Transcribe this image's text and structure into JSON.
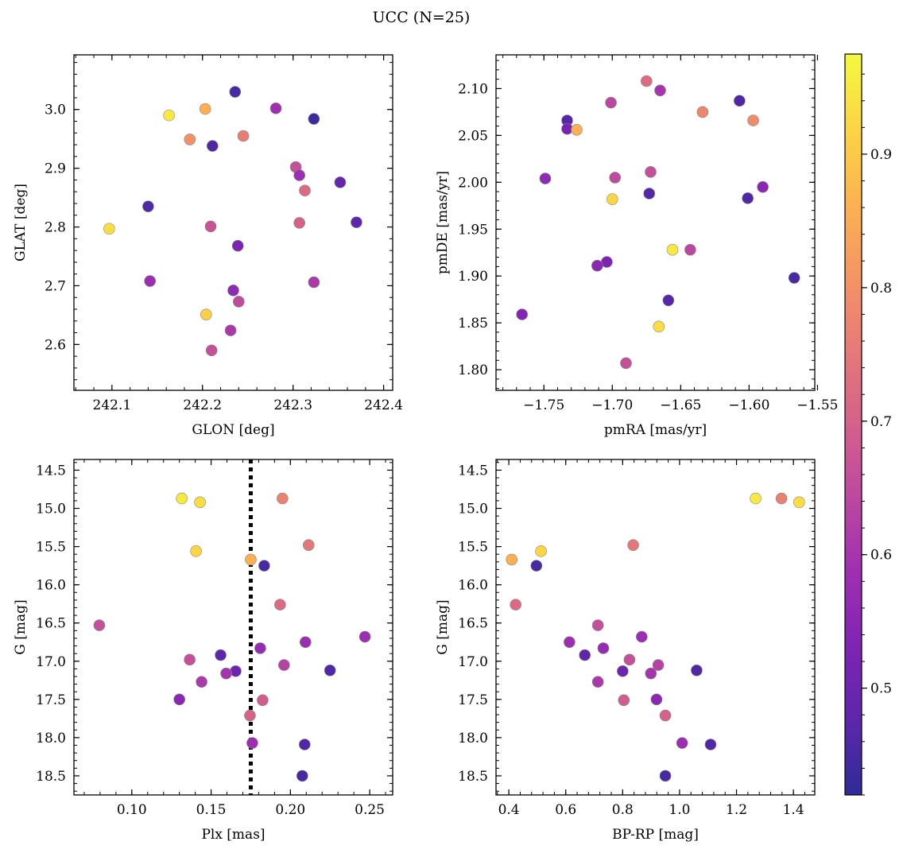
{
  "figure": {
    "title": "UCC (N=25)"
  },
  "colorbar": {
    "cmap": "plasma",
    "range": [
      0.42,
      0.975
    ],
    "ticks": [
      0.5,
      0.6,
      0.7,
      0.8,
      0.9
    ],
    "tick_labels": [
      "0.5",
      "0.6",
      "0.7",
      "0.8",
      "0.9"
    ]
  },
  "chart_data": [
    {
      "type": "scatter",
      "xlabel": "GLON [deg]",
      "ylabel": "GLAT [deg]",
      "xlim": [
        242.058,
        242.41
      ],
      "ylim": [
        2.522,
        3.093
      ],
      "xticks": [
        242.1,
        242.2,
        242.3,
        242.4
      ],
      "xtick_labels": [
        "242.1",
        "242.2",
        "242.3",
        "242.4"
      ],
      "yticks": [
        2.6,
        2.7,
        2.8,
        2.9,
        3.0
      ],
      "ytick_labels": [
        "2.6",
        "2.7",
        "2.8",
        "2.9",
        "3.0"
      ],
      "y_inverted": false,
      "points": [
        {
          "x": 242.236,
          "y": 3.03,
          "c": 0.45
        },
        {
          "x": 242.281,
          "y": 3.002,
          "c": 0.59
        },
        {
          "x": 242.203,
          "y": 3.001,
          "c": 0.86
        },
        {
          "x": 242.163,
          "y": 2.99,
          "c": 0.95
        },
        {
          "x": 242.323,
          "y": 2.984,
          "c": 0.44
        },
        {
          "x": 242.245,
          "y": 2.955,
          "c": 0.76
        },
        {
          "x": 242.186,
          "y": 2.949,
          "c": 0.8
        },
        {
          "x": 242.211,
          "y": 2.938,
          "c": 0.46
        },
        {
          "x": 242.303,
          "y": 2.902,
          "c": 0.66
        },
        {
          "x": 242.307,
          "y": 2.888,
          "c": 0.58
        },
        {
          "x": 242.352,
          "y": 2.876,
          "c": 0.49
        },
        {
          "x": 242.313,
          "y": 2.862,
          "c": 0.72
        },
        {
          "x": 242.14,
          "y": 2.835,
          "c": 0.46
        },
        {
          "x": 242.37,
          "y": 2.808,
          "c": 0.48
        },
        {
          "x": 242.307,
          "y": 2.807,
          "c": 0.7
        },
        {
          "x": 242.209,
          "y": 2.801,
          "c": 0.67
        },
        {
          "x": 242.097,
          "y": 2.797,
          "c": 0.93
        },
        {
          "x": 242.239,
          "y": 2.768,
          "c": 0.53
        },
        {
          "x": 242.142,
          "y": 2.708,
          "c": 0.58
        },
        {
          "x": 242.323,
          "y": 2.706,
          "c": 0.61
        },
        {
          "x": 242.234,
          "y": 2.692,
          "c": 0.56
        },
        {
          "x": 242.24,
          "y": 2.673,
          "c": 0.65
        },
        {
          "x": 242.204,
          "y": 2.651,
          "c": 0.91
        },
        {
          "x": 242.231,
          "y": 2.624,
          "c": 0.61
        },
        {
          "x": 242.21,
          "y": 2.59,
          "c": 0.66
        }
      ]
    },
    {
      "type": "scatter",
      "xlabel": "pmRA [mas/yr]",
      "ylabel": "pmDE [mas/yr]",
      "xlim": [
        -1.785,
        -1.552
      ],
      "ylim": [
        1.778,
        2.136
      ],
      "xticks": [
        -1.75,
        -1.7,
        -1.65,
        -1.6,
        -1.55
      ],
      "xtick_labels": [
        "−1.75",
        "−1.70",
        "−1.65",
        "−1.60",
        "−1.55"
      ],
      "yticks": [
        1.8,
        1.85,
        1.9,
        1.95,
        2.0,
        2.05,
        2.1
      ],
      "ytick_labels": [
        "1.80",
        "1.85",
        "1.90",
        "1.95",
        "2.00",
        "2.05",
        "2.10"
      ],
      "y_inverted": false,
      "points": [
        {
          "x": -1.675,
          "y": 2.108,
          "c": 0.72
        },
        {
          "x": -1.665,
          "y": 2.098,
          "c": 0.6
        },
        {
          "x": -1.607,
          "y": 2.087,
          "c": 0.46
        },
        {
          "x": -1.701,
          "y": 2.085,
          "c": 0.64
        },
        {
          "x": -1.634,
          "y": 2.075,
          "c": 0.78
        },
        {
          "x": -1.733,
          "y": 2.066,
          "c": 0.47
        },
        {
          "x": -1.597,
          "y": 2.066,
          "c": 0.79
        },
        {
          "x": -1.733,
          "y": 2.057,
          "c": 0.52
        },
        {
          "x": -1.726,
          "y": 2.056,
          "c": 0.86
        },
        {
          "x": -1.672,
          "y": 2.011,
          "c": 0.66
        },
        {
          "x": -1.698,
          "y": 2.005,
          "c": 0.65
        },
        {
          "x": -1.749,
          "y": 2.004,
          "c": 0.56
        },
        {
          "x": -1.59,
          "y": 1.995,
          "c": 0.55
        },
        {
          "x": -1.673,
          "y": 1.988,
          "c": 0.47
        },
        {
          "x": -1.601,
          "y": 1.983,
          "c": 0.46
        },
        {
          "x": -1.7,
          "y": 1.982,
          "c": 0.92
        },
        {
          "x": -1.656,
          "y": 1.928,
          "c": 0.95
        },
        {
          "x": -1.643,
          "y": 1.928,
          "c": 0.64
        },
        {
          "x": -1.704,
          "y": 1.915,
          "c": 0.53
        },
        {
          "x": -1.711,
          "y": 1.911,
          "c": 0.55
        },
        {
          "x": -1.567,
          "y": 1.898,
          "c": 0.45
        },
        {
          "x": -1.659,
          "y": 1.874,
          "c": 0.47
        },
        {
          "x": -1.766,
          "y": 1.859,
          "c": 0.54
        },
        {
          "x": -1.666,
          "y": 1.846,
          "c": 0.93
        },
        {
          "x": -1.69,
          "y": 1.807,
          "c": 0.66
        }
      ]
    },
    {
      "type": "scatter",
      "xlabel": "Plx [mas]",
      "ylabel": "G [mag]",
      "xlim": [
        0.0635,
        0.2645
      ],
      "ylim": [
        14.36,
        18.75
      ],
      "xticks": [
        0.1,
        0.15,
        0.2,
        0.25
      ],
      "xtick_labels": [
        "0.10",
        "0.15",
        "0.20",
        "0.25"
      ],
      "yticks": [
        14.5,
        15.0,
        15.5,
        16.0,
        16.5,
        17.0,
        17.5,
        18.0,
        18.5
      ],
      "ytick_labels": [
        "14.5",
        "15.0",
        "15.5",
        "16.0",
        "16.5",
        "17.0",
        "17.5",
        "18.0",
        "18.5"
      ],
      "y_inverted": true,
      "vline": {
        "x": 0.175
      },
      "points": [
        {
          "x": 0.1315,
          "y": 14.87,
          "c": 0.95
        },
        {
          "x": 0.143,
          "y": 14.92,
          "c": 0.93
        },
        {
          "x": 0.195,
          "y": 14.87,
          "c": 0.77
        },
        {
          "x": 0.2115,
          "y": 15.48,
          "c": 0.75
        },
        {
          "x": 0.1405,
          "y": 15.56,
          "c": 0.92
        },
        {
          "x": 0.175,
          "y": 15.67,
          "c": 0.86
        },
        {
          "x": 0.1835,
          "y": 15.75,
          "c": 0.45
        },
        {
          "x": 0.1935,
          "y": 16.26,
          "c": 0.72
        },
        {
          "x": 0.0795,
          "y": 16.53,
          "c": 0.66
        },
        {
          "x": 0.247,
          "y": 16.68,
          "c": 0.58
        },
        {
          "x": 0.2095,
          "y": 16.75,
          "c": 0.58
        },
        {
          "x": 0.181,
          "y": 16.83,
          "c": 0.57
        },
        {
          "x": 0.156,
          "y": 16.92,
          "c": 0.48
        },
        {
          "x": 0.1365,
          "y": 16.98,
          "c": 0.66
        },
        {
          "x": 0.196,
          "y": 17.05,
          "c": 0.63
        },
        {
          "x": 0.225,
          "y": 17.12,
          "c": 0.46
        },
        {
          "x": 0.1655,
          "y": 17.13,
          "c": 0.5
        },
        {
          "x": 0.1595,
          "y": 17.16,
          "c": 0.6
        },
        {
          "x": 0.144,
          "y": 17.27,
          "c": 0.61
        },
        {
          "x": 0.13,
          "y": 17.5,
          "c": 0.55
        },
        {
          "x": 0.1825,
          "y": 17.51,
          "c": 0.69
        },
        {
          "x": 0.1745,
          "y": 17.71,
          "c": 0.7
        },
        {
          "x": 0.176,
          "y": 18.07,
          "c": 0.58
        },
        {
          "x": 0.209,
          "y": 18.09,
          "c": 0.46
        },
        {
          "x": 0.2075,
          "y": 18.5,
          "c": 0.45
        }
      ]
    },
    {
      "type": "scatter",
      "xlabel": "BP-RP [mag]",
      "ylabel": "G [mag]",
      "xlim": [
        0.355,
        1.475
      ],
      "ylim": [
        14.36,
        18.75
      ],
      "xticks": [
        0.4,
        0.6,
        0.8,
        1.0,
        1.2,
        1.4
      ],
      "xtick_labels": [
        "0.4",
        "0.6",
        "0.8",
        "1.0",
        "1.2",
        "1.4"
      ],
      "yticks": [
        14.5,
        15.0,
        15.5,
        16.0,
        16.5,
        17.0,
        17.5,
        18.0,
        18.5
      ],
      "ytick_labels": [
        "14.5",
        "15.0",
        "15.5",
        "16.0",
        "16.5",
        "17.0",
        "17.5",
        "18.0",
        "18.5"
      ],
      "y_inverted": true,
      "points": [
        {
          "x": 1.267,
          "y": 14.87,
          "c": 0.95
        },
        {
          "x": 1.358,
          "y": 14.87,
          "c": 0.77
        },
        {
          "x": 1.42,
          "y": 14.92,
          "c": 0.93
        },
        {
          "x": 0.837,
          "y": 15.48,
          "c": 0.75
        },
        {
          "x": 0.513,
          "y": 15.56,
          "c": 0.92
        },
        {
          "x": 0.41,
          "y": 15.67,
          "c": 0.86
        },
        {
          "x": 0.497,
          "y": 15.75,
          "c": 0.45
        },
        {
          "x": 0.424,
          "y": 16.26,
          "c": 0.72
        },
        {
          "x": 0.713,
          "y": 16.53,
          "c": 0.66
        },
        {
          "x": 0.867,
          "y": 16.68,
          "c": 0.58
        },
        {
          "x": 0.613,
          "y": 16.75,
          "c": 0.58
        },
        {
          "x": 0.732,
          "y": 16.83,
          "c": 0.57
        },
        {
          "x": 0.667,
          "y": 16.92,
          "c": 0.48
        },
        {
          "x": 0.824,
          "y": 16.98,
          "c": 0.66
        },
        {
          "x": 0.925,
          "y": 17.05,
          "c": 0.63
        },
        {
          "x": 1.06,
          "y": 17.12,
          "c": 0.46
        },
        {
          "x": 0.8,
          "y": 17.13,
          "c": 0.5
        },
        {
          "x": 0.899,
          "y": 17.16,
          "c": 0.6
        },
        {
          "x": 0.713,
          "y": 17.27,
          "c": 0.61
        },
        {
          "x": 0.919,
          "y": 17.5,
          "c": 0.55
        },
        {
          "x": 0.804,
          "y": 17.51,
          "c": 0.69
        },
        {
          "x": 0.95,
          "y": 17.71,
          "c": 0.7
        },
        {
          "x": 1.009,
          "y": 18.07,
          "c": 0.58
        },
        {
          "x": 1.109,
          "y": 18.09,
          "c": 0.46
        },
        {
          "x": 0.95,
          "y": 18.5,
          "c": 0.45
        }
      ]
    }
  ]
}
